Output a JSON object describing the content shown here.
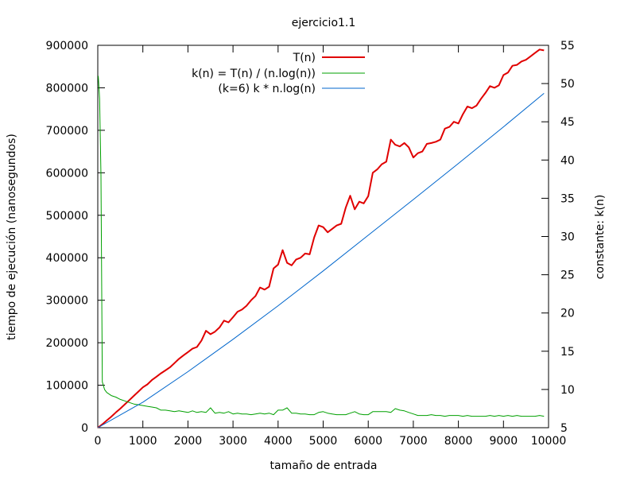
{
  "chart_data": {
    "type": "line",
    "title": "ejercicio1.1",
    "xlabel": "tamaño de entrada",
    "ylabel": "tiempo de ejecución (nanosegundos)",
    "y2label": "constante: k(n)",
    "xlim": [
      0,
      10000
    ],
    "ylim": [
      0,
      900000
    ],
    "y2lim": [
      5,
      55
    ],
    "xticks": [
      0,
      1000,
      2000,
      3000,
      4000,
      5000,
      6000,
      7000,
      8000,
      9000,
      10000
    ],
    "yticks": [
      0,
      100000,
      200000,
      300000,
      400000,
      500000,
      600000,
      700000,
      800000,
      900000
    ],
    "y2ticks": [
      5,
      10,
      15,
      20,
      25,
      30,
      35,
      40,
      45,
      50,
      55
    ],
    "grid": false,
    "legend_position": "top-right",
    "series": [
      {
        "name": "T(n)",
        "color": "#e00000",
        "axis": "y",
        "x": [
          0,
          100,
          200,
          300,
          400,
          500,
          600,
          700,
          800,
          900,
          1000,
          1100,
          1200,
          1300,
          1400,
          1500,
          1600,
          1700,
          1800,
          1900,
          2000,
          2100,
          2200,
          2300,
          2400,
          2500,
          2600,
          2700,
          2800,
          2900,
          3000,
          3100,
          3200,
          3300,
          3400,
          3500,
          3600,
          3700,
          3800,
          3900,
          4000,
          4100,
          4200,
          4300,
          4400,
          4500,
          4600,
          4700,
          4800,
          4900,
          5000,
          5100,
          5200,
          5300,
          5400,
          5500,
          5600,
          5700,
          5800,
          5900,
          6000,
          6100,
          6200,
          6300,
          6400,
          6500,
          6600,
          6700,
          6800,
          6900,
          7000,
          7100,
          7200,
          7300,
          7400,
          7500,
          7600,
          7700,
          7800,
          7900,
          8000,
          8100,
          8200,
          8300,
          8400,
          8500,
          8600,
          8700,
          8800,
          8900,
          9000,
          9100,
          9200,
          9300,
          9400,
          9500,
          9600,
          9700,
          9800,
          9900
        ],
        "values": [
          0,
          8000,
          17000,
          26000,
          36000,
          45000,
          55000,
          65000,
          75000,
          85000,
          95000,
          102000,
          112000,
          120000,
          128000,
          135000,
          142000,
          152000,
          162000,
          170000,
          178000,
          186000,
          190000,
          205000,
          228000,
          220000,
          226000,
          236000,
          252000,
          248000,
          260000,
          273000,
          278000,
          287000,
          300000,
          310000,
          330000,
          325000,
          332000,
          375000,
          384000,
          418000,
          388000,
          382000,
          396000,
          400000,
          410000,
          408000,
          448000,
          476000,
          472000,
          460000,
          468000,
          476000,
          480000,
          518000,
          546000,
          514000,
          532000,
          528000,
          545000,
          600000,
          608000,
          620000,
          626000,
          678000,
          666000,
          662000,
          670000,
          660000,
          636000,
          646000,
          650000,
          668000,
          670000,
          673000,
          678000,
          704000,
          708000,
          720000,
          716000,
          738000,
          756000,
          752000,
          758000,
          774000,
          788000,
          804000,
          800000,
          806000,
          830000,
          836000,
          852000,
          854000,
          862000,
          866000,
          874000,
          882000,
          890000,
          888000
        ]
      },
      {
        "name": "k(n) = T(n) / (n.log(n))",
        "color": "#00a000",
        "axis": "y2",
        "x": [
          10,
          40,
          70,
          100,
          150,
          200,
          300,
          400,
          500,
          600,
          700,
          800,
          900,
          1000,
          1100,
          1200,
          1300,
          1400,
          1500,
          1600,
          1700,
          1800,
          1900,
          2000,
          2100,
          2200,
          2300,
          2400,
          2500,
          2600,
          2700,
          2800,
          2900,
          3000,
          3100,
          3200,
          3300,
          3400,
          3500,
          3600,
          3700,
          3800,
          3900,
          4000,
          4100,
          4200,
          4300,
          4400,
          4500,
          4600,
          4700,
          4800,
          4900,
          5000,
          5100,
          5200,
          5300,
          5400,
          5500,
          5600,
          5700,
          5800,
          5900,
          6000,
          6100,
          6200,
          6300,
          6400,
          6500,
          6600,
          6700,
          6800,
          6900,
          7000,
          7100,
          7200,
          7300,
          7400,
          7500,
          7600,
          7700,
          7800,
          7900,
          8000,
          8100,
          8200,
          8300,
          8400,
          8500,
          8600,
          8700,
          8800,
          8900,
          9000,
          9100,
          9200,
          9300,
          9400,
          9500,
          9600,
          9700,
          9800,
          9900
        ],
        "values": [
          51,
          48,
          38,
          11,
          10,
          9.6,
          9.2,
          9.0,
          8.7,
          8.5,
          8.3,
          8.1,
          8.0,
          7.9,
          7.8,
          7.7,
          7.6,
          7.3,
          7.3,
          7.2,
          7.1,
          7.2,
          7.1,
          7.0,
          7.2,
          7.0,
          7.1,
          7.0,
          7.6,
          6.9,
          7.0,
          6.9,
          7.1,
          6.8,
          6.9,
          6.8,
          6.8,
          6.7,
          6.8,
          6.9,
          6.8,
          6.9,
          6.7,
          7.3,
          7.3,
          7.6,
          6.9,
          6.9,
          6.8,
          6.8,
          6.7,
          6.7,
          7.0,
          7.1,
          6.9,
          6.8,
          6.7,
          6.7,
          6.7,
          6.9,
          7.1,
          6.8,
          6.7,
          6.7,
          7.1,
          7.1,
          7.1,
          7.1,
          7.0,
          7.5,
          7.3,
          7.2,
          7.0,
          6.8,
          6.6,
          6.6,
          6.6,
          6.7,
          6.6,
          6.6,
          6.5,
          6.6,
          6.6,
          6.6,
          6.5,
          6.6,
          6.5,
          6.5,
          6.5,
          6.5,
          6.6,
          6.5,
          6.6,
          6.5,
          6.6,
          6.5,
          6.6,
          6.5,
          6.5,
          6.5,
          6.5,
          6.6,
          6.5
        ]
      },
      {
        "name": "(k=6) k * n.log(n)",
        "color": "#0066cc",
        "axis": "y",
        "x": [
          0,
          1000,
          2000,
          3000,
          4000,
          5000,
          6000,
          7000,
          8000,
          9000,
          9900
        ],
        "values": [
          0,
          60000,
          132000,
          208000,
          287000,
          369000,
          453000,
          537000,
          622000,
          708000,
          787000
        ]
      }
    ]
  }
}
